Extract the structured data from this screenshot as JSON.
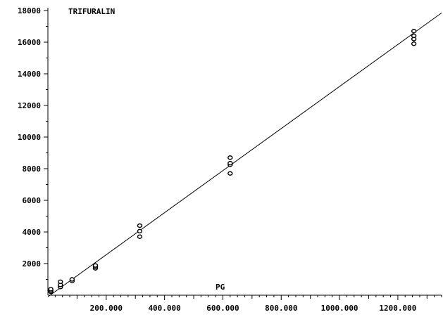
{
  "chart_data": {
    "type": "scatter",
    "title": "TRIFURALIN",
    "xlabel": "PG",
    "ylabel": "",
    "xlim": [
      0,
      1350
    ],
    "ylim": [
      0,
      18000
    ],
    "x_ticks": [
      200,
      400,
      600,
      800,
      1000,
      1200
    ],
    "x_tick_labels": [
      "200.000",
      "400.000",
      "600.000",
      "800.000",
      "1000.000",
      "1200.000"
    ],
    "y_ticks": [
      2000,
      4000,
      6000,
      8000,
      10000,
      12000,
      14000,
      16000,
      18000
    ],
    "y_tick_labels": [
      "2000",
      "4000",
      "6000",
      "8000",
      "10000",
      "12000",
      "14000",
      "16000",
      "18000"
    ],
    "grid": false,
    "series": [
      {
        "marker": "circle",
        "points": [
          {
            "x": 10,
            "y": 220
          },
          {
            "x": 10,
            "y": 300
          },
          {
            "x": 10,
            "y": 380
          },
          {
            "x": 43,
            "y": 520
          },
          {
            "x": 43,
            "y": 650
          },
          {
            "x": 43,
            "y": 850
          },
          {
            "x": 83,
            "y": 900
          },
          {
            "x": 83,
            "y": 1000
          },
          {
            "x": 163,
            "y": 1700
          },
          {
            "x": 163,
            "y": 1800
          },
          {
            "x": 163,
            "y": 1880
          },
          {
            "x": 315,
            "y": 3700
          },
          {
            "x": 315,
            "y": 4050
          },
          {
            "x": 315,
            "y": 4400
          },
          {
            "x": 625,
            "y": 7700
          },
          {
            "x": 625,
            "y": 8250
          },
          {
            "x": 625,
            "y": 8350
          },
          {
            "x": 625,
            "y": 8700
          },
          {
            "x": 1255,
            "y": 15900
          },
          {
            "x": 1255,
            "y": 16200
          },
          {
            "x": 1255,
            "y": 16400
          },
          {
            "x": 1255,
            "y": 16700
          }
        ]
      }
    ],
    "fit_line": {
      "x": [
        0,
        1350
      ],
      "y": [
        -100,
        17850
      ]
    }
  }
}
